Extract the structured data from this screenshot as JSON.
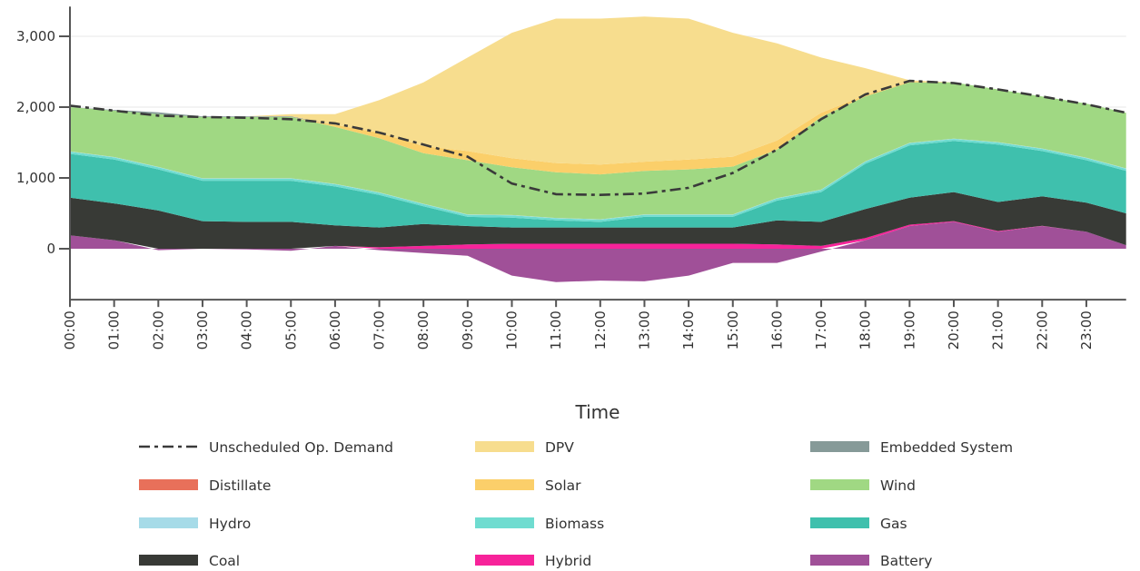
{
  "chart_data": {
    "type": "area",
    "stacked": true,
    "title": "",
    "xlabel": "Time",
    "ylabel": "",
    "x_hours": [
      0,
      1,
      2,
      3,
      4,
      5,
      6,
      7,
      8,
      9,
      10,
      11,
      12,
      13,
      14,
      15,
      16,
      17,
      18,
      19,
      20,
      21,
      22,
      23,
      23.9
    ],
    "xlim": [
      0,
      23.9
    ],
    "ylim": [
      -720,
      3420
    ],
    "y_ticks": [
      {
        "value": 3000,
        "label": "3,000"
      },
      {
        "value": 2000,
        "label": "2,000"
      },
      {
        "value": 1000,
        "label": "1,000"
      },
      {
        "value": 0,
        "label": "0"
      }
    ],
    "x_ticks": [
      "00:00",
      "01:00",
      "02:00",
      "03:00",
      "04:00",
      "05:00",
      "06:00",
      "07:00",
      "08:00",
      "09:00",
      "10:00",
      "11:00",
      "12:00",
      "13:00",
      "14:00",
      "15:00",
      "16:00",
      "17:00",
      "18:00",
      "19:00",
      "20:00",
      "21:00",
      "22:00",
      "23:00"
    ],
    "grid": "horizontal",
    "legend_placement": "bottom",
    "series": [
      {
        "name": "Battery",
        "color": "#a05098",
        "values": [
          190,
          120,
          -20,
          0,
          -10,
          -30,
          40,
          -20,
          -60,
          -100,
          -380,
          -470,
          -450,
          -460,
          -380,
          -200,
          -200,
          -40,
          120,
          320,
          380,
          240,
          320,
          240,
          50
        ]
      },
      {
        "name": "Hybrid",
        "color": "#f7239a",
        "values": [
          0,
          0,
          0,
          0,
          0,
          0,
          0,
          20,
          40,
          60,
          70,
          70,
          70,
          70,
          70,
          70,
          60,
          40,
          30,
          20,
          10,
          10,
          5,
          0,
          0
        ]
      },
      {
        "name": "Coal",
        "color": "#383a36",
        "values": [
          530,
          520,
          540,
          390,
          380,
          380,
          290,
          280,
          310,
          260,
          230,
          230,
          230,
          230,
          230,
          230,
          340,
          340,
          410,
          380,
          410,
          410,
          415,
          410,
          450
        ]
      },
      {
        "name": "Gas",
        "color": "#3fc0ad",
        "values": [
          620,
          620,
          580,
          570,
          580,
          580,
          550,
          460,
          250,
          130,
          140,
          100,
          80,
          150,
          150,
          150,
          280,
          420,
          640,
          740,
          720,
          810,
          640,
          600,
          600
        ]
      },
      {
        "name": "Biomass",
        "color": "#6fdcd0",
        "values": [
          30,
          30,
          30,
          30,
          30,
          30,
          30,
          30,
          30,
          30,
          30,
          30,
          30,
          30,
          30,
          30,
          30,
          30,
          30,
          30,
          30,
          30,
          30,
          30,
          30
        ]
      },
      {
        "name": "Hydro",
        "color": "#a6dbe8",
        "values": [
          5,
          5,
          5,
          5,
          5,
          5,
          5,
          5,
          5,
          5,
          5,
          5,
          5,
          5,
          5,
          5,
          5,
          5,
          5,
          5,
          5,
          5,
          5,
          5,
          5
        ]
      },
      {
        "name": "Distillate",
        "color": "#e8705a",
        "values": [
          0,
          0,
          0,
          0,
          0,
          0,
          0,
          0,
          0,
          0,
          0,
          0,
          0,
          0,
          0,
          0,
          0,
          0,
          0,
          0,
          0,
          0,
          0,
          0,
          0
        ]
      },
      {
        "name": "Wind",
        "color": "#a0d883",
        "values": [
          625,
          655,
          745,
          865,
          865,
          865,
          805,
          765,
          715,
          765,
          675,
          645,
          635,
          615,
          635,
          675,
          685,
          1025,
          915,
          855,
          795,
          745,
          735,
          765,
          785
        ]
      },
      {
        "name": "Solar",
        "color": "#fbcf6a",
        "values": [
          0,
          0,
          0,
          0,
          0,
          0,
          30,
          80,
          100,
          130,
          130,
          130,
          140,
          130,
          140,
          140,
          130,
          60,
          20,
          10,
          0,
          0,
          0,
          0,
          0
        ]
      },
      {
        "name": "Embedded System",
        "color": "#869a98",
        "values": [
          0,
          10,
          25,
          10,
          10,
          10,
          0,
          0,
          0,
          0,
          0,
          0,
          0,
          0,
          0,
          0,
          0,
          0,
          0,
          0,
          0,
          0,
          0,
          0,
          0
        ]
      },
      {
        "name": "DPV",
        "color": "#f7dd8e",
        "values": [
          0,
          0,
          0,
          0,
          0,
          30,
          150,
          460,
          900,
          1320,
          1770,
          2040,
          2060,
          2050,
          1990,
          1750,
          1370,
          780,
          380,
          20,
          0,
          0,
          0,
          0,
          0
        ]
      }
    ],
    "line_series": {
      "name": "Unscheduled Op. Demand",
      "color": "#3a3a3a",
      "values": [
        2020,
        1950,
        1880,
        1860,
        1850,
        1830,
        1770,
        1640,
        1470,
        1300,
        920,
        770,
        760,
        780,
        860,
        1070,
        1400,
        1830,
        2180,
        2370,
        2340,
        2250,
        2150,
        2040,
        1920
      ]
    },
    "legend": [
      [
        "Unscheduled Op. Demand",
        "DPV",
        "Embedded System"
      ],
      [
        "Distillate",
        "Solar",
        "Wind"
      ],
      [
        "Hydro",
        "Biomass",
        "Gas"
      ],
      [
        "Coal",
        "Hybrid",
        "Battery"
      ]
    ]
  }
}
